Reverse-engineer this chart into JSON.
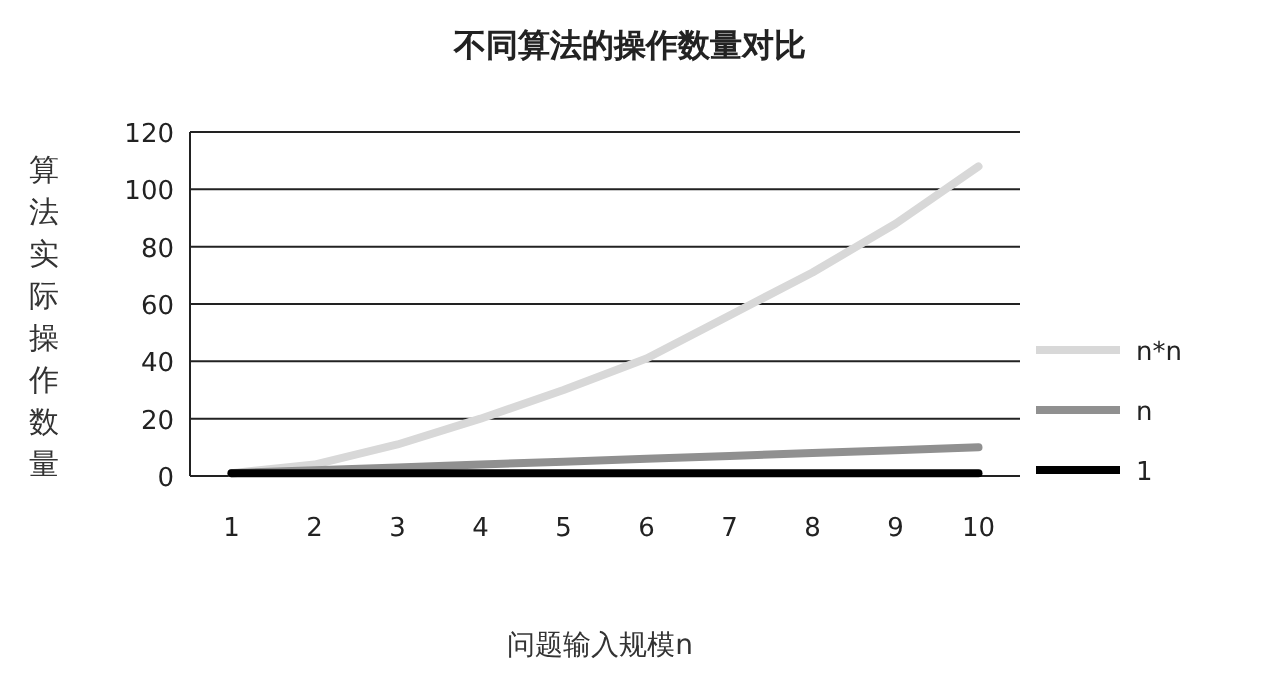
{
  "chart_data": {
    "type": "line",
    "title": "不同算法的操作数量对比",
    "xlabel": "问题输入规模n",
    "ylabel": "算法实际操作数量",
    "categories": [
      "1",
      "2",
      "3",
      "4",
      "5",
      "6",
      "7",
      "8",
      "9",
      "10"
    ],
    "series": [
      {
        "name": "n*n",
        "color": "#d8d8d8",
        "values": [
          1,
          4,
          11,
          20,
          30,
          41,
          56,
          71,
          88,
          108
        ]
      },
      {
        "name": "n",
        "color": "#909090",
        "values": [
          1,
          2,
          3,
          4,
          5,
          6,
          7,
          8,
          9,
          10
        ]
      },
      {
        "name": "1",
        "color": "#000000",
        "values": [
          1,
          1,
          1,
          1,
          1,
          1,
          1,
          1,
          1,
          1
        ]
      }
    ],
    "ylim": [
      0,
      120
    ],
    "yticks": [
      0,
      20,
      40,
      60,
      80,
      100,
      120
    ],
    "grid": "y",
    "legend": "right"
  }
}
